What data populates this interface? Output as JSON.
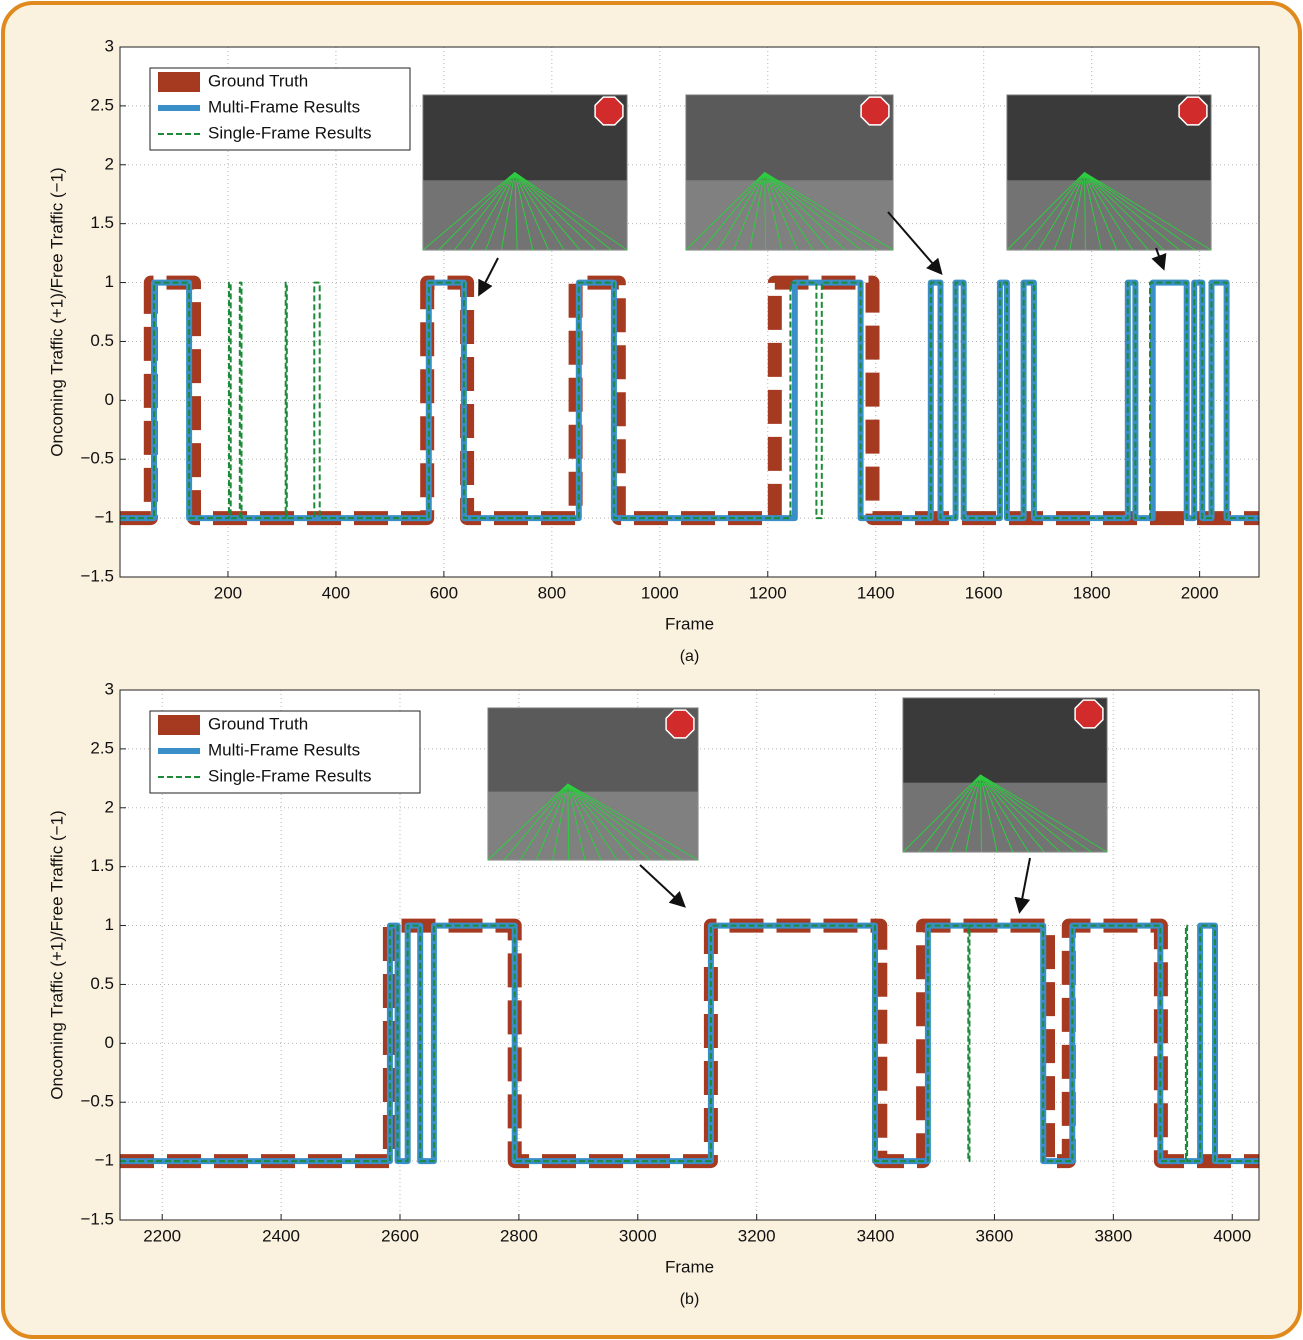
{
  "chart_data": [
    {
      "type": "line",
      "caption": "(a)",
      "xlabel": "Frame",
      "ylabel": "Oncoming Traffic (+1)/Free Traffic (−1)",
      "xlim": [
        0,
        2110
      ],
      "ylim": [
        -1.5,
        3
      ],
      "xticks": [
        200,
        400,
        600,
        800,
        1000,
        1200,
        1400,
        1600,
        1800,
        2000
      ],
      "yticks": [
        {
          "value": -1.5,
          "label": "−1.5"
        },
        {
          "value": -1,
          "label": "−1"
        },
        {
          "value": -0.5,
          "label": "−0.5"
        },
        0,
        0.5,
        1,
        1.5,
        2,
        2.5,
        3
      ],
      "grid": true,
      "legend": "upper left",
      "series": [
        {
          "name": "Ground Truth",
          "color": "#a53a20",
          "linestyle": "dashed",
          "x": [
            0,
            57,
            57,
            137,
            137,
            569,
            569,
            643,
            643,
            844,
            844,
            924,
            924,
            1213,
            1213,
            1394,
            1394,
            2110
          ],
          "values": [
            -1,
            -1,
            1,
            1,
            -1,
            -1,
            1,
            1,
            -1,
            -1,
            1,
            1,
            -1,
            -1,
            1,
            1,
            -1,
            -1
          ]
        },
        {
          "name": "Multi-Frame Results",
          "color": "#3a8fc9",
          "linestyle": "solid",
          "x": [
            0,
            63,
            63,
            128,
            128,
            572,
            572,
            637,
            637,
            850,
            850,
            915,
            915,
            1250,
            1250,
            1372,
            1372,
            1502,
            1502,
            1520,
            1520,
            1548,
            1548,
            1563,
            1563,
            1630,
            1630,
            1643,
            1643,
            1674,
            1674,
            1693,
            1693,
            1867,
            1867,
            1881,
            1881,
            1913,
            1913,
            1976,
            1976,
            1990,
            1990,
            2005,
            2005,
            2022,
            2022,
            2050,
            2050,
            2110
          ],
          "values": [
            -1,
            -1,
            1,
            1,
            -1,
            -1,
            1,
            1,
            -1,
            -1,
            1,
            1,
            -1,
            -1,
            1,
            1,
            -1,
            -1,
            1,
            1,
            -1,
            -1,
            1,
            1,
            -1,
            -1,
            1,
            1,
            -1,
            -1,
            1,
            1,
            -1,
            -1,
            1,
            1,
            -1,
            -1,
            1,
            1,
            -1,
            -1,
            1,
            1,
            -1,
            -1,
            1,
            1,
            -1,
            -1
          ]
        },
        {
          "name": "Single-Frame Results",
          "color": "#1d8a3a",
          "linestyle": "dashed",
          "x": [
            0,
            63,
            63,
            128,
            128,
            202,
            202,
            205,
            205,
            222,
            222,
            225,
            225,
            307,
            307,
            309,
            309,
            360,
            360,
            370,
            370,
            572,
            572,
            637,
            637,
            850,
            850,
            915,
            915,
            1242,
            1242,
            1290,
            1290,
            1300,
            1300,
            1372,
            1372,
            1502,
            1502,
            1520,
            1520,
            1548,
            1548,
            1563,
            1563,
            1630,
            1630,
            1643,
            1643,
            1674,
            1674,
            1693,
            1693,
            1867,
            1867,
            1881,
            1881,
            1908,
            1908,
            1976,
            1976,
            1990,
            1990,
            2005,
            2005,
            2022,
            2022,
            2050,
            2050,
            2110
          ],
          "values": [
            -1,
            -1,
            1,
            1,
            -1,
            -1,
            1,
            1,
            -1,
            -1,
            1,
            1,
            -1,
            -1,
            1,
            1,
            -1,
            -1,
            1,
            1,
            -1,
            -1,
            1,
            1,
            -1,
            -1,
            1,
            1,
            -1,
            -1,
            1,
            1,
            -1,
            -1,
            1,
            1,
            -1,
            -1,
            1,
            1,
            -1,
            -1,
            1,
            1,
            -1,
            -1,
            1,
            1,
            -1,
            -1,
            1,
            1,
            -1,
            -1,
            1,
            1,
            -1,
            -1,
            1,
            1,
            -1,
            -1,
            1,
            1,
            -1,
            -1,
            1,
            1,
            -1,
            -1
          ]
        }
      ]
    },
    {
      "type": "line",
      "caption": "(b)",
      "xlabel": "Frame",
      "ylabel": "Oncoming Traffic (+1)/Free Traffic (−1)",
      "xlim": [
        2129,
        4045
      ],
      "ylim": [
        -1.5,
        3
      ],
      "xticks": [
        2200,
        2400,
        2600,
        2800,
        3000,
        3200,
        3400,
        3600,
        3800,
        4000
      ],
      "yticks": [
        {
          "value": -1.5,
          "label": "−1.5"
        },
        {
          "value": -1,
          "label": "−1"
        },
        {
          "value": -0.5,
          "label": "−0.5"
        },
        0,
        0.5,
        1,
        1.5,
        2,
        2.5,
        3
      ],
      "grid": true,
      "legend": "upper left",
      "series": [
        {
          "name": "Ground Truth",
          "color": "#a53a20",
          "linestyle": "dashed",
          "x": [
            2129,
            2583,
            2583,
            2793,
            2793,
            3123,
            3123,
            3408,
            3408,
            3480,
            3480,
            3690,
            3690,
            3725,
            3725,
            3880,
            3880,
            4045
          ],
          "values": [
            -1,
            -1,
            1,
            1,
            -1,
            -1,
            1,
            1,
            -1,
            -1,
            1,
            1,
            -1,
            -1,
            1,
            1,
            -1,
            -1
          ]
        },
        {
          "name": "Multi-Frame Results",
          "color": "#3a8fc9",
          "linestyle": "solid",
          "x": [
            2129,
            2583,
            2583,
            2596,
            2596,
            2613,
            2613,
            2634,
            2634,
            2657,
            2657,
            2793,
            2793,
            3123,
            3123,
            3399,
            3399,
            3488,
            3488,
            3682,
            3682,
            3731,
            3731,
            3879,
            3879,
            3946,
            3946,
            3971,
            3971,
            4045
          ],
          "values": [
            -1,
            -1,
            1,
            1,
            -1,
            -1,
            1,
            1,
            -1,
            -1,
            1,
            1,
            -1,
            -1,
            1,
            1,
            -1,
            -1,
            1,
            1,
            -1,
            -1,
            1,
            1,
            -1,
            -1,
            1,
            1,
            -1,
            -1
          ]
        },
        {
          "name": "Single-Frame Results",
          "color": "#1d8a3a",
          "linestyle": "dashed",
          "x": [
            2129,
            2583,
            2583,
            2596,
            2596,
            2613,
            2613,
            2634,
            2634,
            2657,
            2657,
            2793,
            2793,
            3123,
            3123,
            3399,
            3399,
            3488,
            3488,
            3556,
            3556,
            3558,
            3558,
            3682,
            3682,
            3731,
            3731,
            3879,
            3879,
            3922,
            3922,
            3924,
            3924,
            3946,
            3946,
            3971,
            3971,
            4045
          ],
          "values": [
            -1,
            -1,
            1,
            1,
            -1,
            -1,
            1,
            1,
            -1,
            -1,
            1,
            1,
            -1,
            -1,
            1,
            1,
            -1,
            -1,
            1,
            1,
            -1,
            -1,
            1,
            1,
            -1,
            -1,
            1,
            1,
            -1,
            -1,
            1,
            1,
            -1,
            -1,
            1,
            1,
            -1,
            -1
          ]
        }
      ]
    }
  ]
}
